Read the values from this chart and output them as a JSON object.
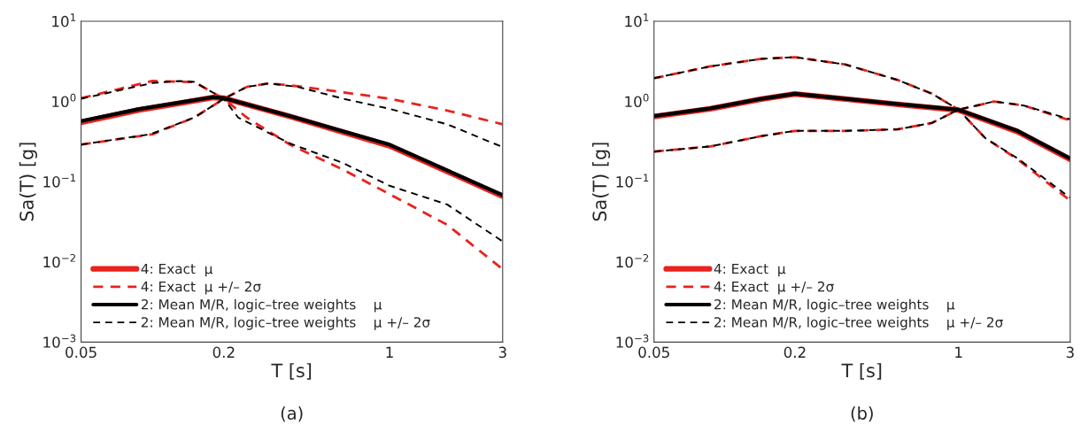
{
  "chart_data": [
    {
      "type": "line",
      "xlabel": "T [s]",
      "ylabel": "Sa(T) [g]",
      "annotations": [
        "(a)"
      ],
      "log": "xy",
      "grid": false,
      "legend": "bottom left",
      "xlim": [
        0.05,
        3
      ],
      "xticks": [
        0.05,
        0.2,
        1,
        3
      ],
      "ylim": [
        0.001,
        10
      ],
      "yticks": [
        {
          "value": 0.001,
          "label": "10$^{−3}$"
        },
        {
          "value": 0.01,
          "label": "10$^{−2}$"
        },
        {
          "value": 0.1,
          "label": "10$^{−1}$"
        },
        {
          "value": 1,
          "label": "10$^{0}$"
        },
        {
          "value": 10,
          "label": "10$^{1}$"
        }
      ],
      "series": [
        {
          "name": "4: Exact  μ",
          "color": "#e8221c",
          "line_style": "solid",
          "x": [
            0.05,
            0.087,
            0.144,
            0.18,
            0.2,
            0.38,
            1,
            3
          ],
          "values": [
            0.55,
            0.78,
            1.0,
            1.12,
            1.1,
            0.65,
            0.28,
            0.066
          ]
        },
        {
          "name": "4: Exact  μ +/– 2σ",
          "color": "#e8221c",
          "line_style": "dashed",
          "x": [
            0.05,
            0.1,
            0.15,
            0.2,
            0.25,
            0.38,
            0.64,
            1,
            1.75,
            3
          ],
          "values": [
            1.1,
            1.8,
            1.75,
            1.08,
            0.63,
            0.29,
            0.14,
            0.07,
            0.029,
            0.0081
          ]
        },
        {
          "color": "#e8221c",
          "line_style": "dashed",
          "x": [
            0.05,
            0.1,
            0.15,
            0.2,
            0.25,
            0.31,
            0.41,
            0.64,
            1,
            1.75,
            3
          ],
          "values": [
            0.29,
            0.39,
            0.63,
            1.08,
            1.52,
            1.68,
            1.55,
            1.3,
            1.08,
            0.77,
            0.52
          ]
        },
        {
          "name": "2: Mean M/R, logic–tree weights    μ",
          "color": "#000000",
          "line_style": "solid",
          "x": [
            0.05,
            0.087,
            0.144,
            0.18,
            0.2,
            0.38,
            1,
            3
          ],
          "values": [
            0.57,
            0.8,
            1.02,
            1.13,
            1.1,
            0.66,
            0.29,
            0.068
          ]
        },
        {
          "name": "2: Mean M/R, logic–tree weights    μ +/– 2σ",
          "color": "#000000",
          "line_style": "dashed",
          "x": [
            0.05,
            0.1,
            0.13,
            0.15,
            0.2,
            0.23,
            0.38,
            0.64,
            1,
            1.75,
            3
          ],
          "values": [
            1.08,
            1.7,
            1.8,
            1.75,
            1.08,
            0.63,
            0.3,
            0.17,
            0.089,
            0.052,
            0.018
          ]
        },
        {
          "color": "#000000",
          "line_style": "dashed",
          "x": [
            0.05,
            0.098,
            0.15,
            0.2,
            0.25,
            0.31,
            0.41,
            0.64,
            1,
            1.75,
            3
          ],
          "values": [
            0.29,
            0.39,
            0.63,
            1.08,
            1.52,
            1.68,
            1.52,
            1.08,
            0.81,
            0.52,
            0.27
          ]
        }
      ]
    },
    {
      "type": "line",
      "xlabel": "T [s]",
      "ylabel": "Sa(T) [g]",
      "annotations": [
        "(b)"
      ],
      "log": "xy",
      "grid": false,
      "legend": "bottom left",
      "xlim": [
        0.05,
        3
      ],
      "xticks": [
        0.05,
        0.2,
        1,
        3
      ],
      "ylim": [
        0.001,
        10
      ],
      "yticks": [
        {
          "value": 0.001,
          "label": "10$^{−3}$"
        },
        {
          "value": 0.01,
          "label": "10$^{−2}$"
        },
        {
          "value": 0.1,
          "label": "10$^{−1}$"
        },
        {
          "value": 1,
          "label": "10$^{0}$"
        },
        {
          "value": 10,
          "label": "10$^{1}$"
        }
      ],
      "series": [
        {
          "name": "4: Exact  μ",
          "color": "#e8221c",
          "line_style": "solid",
          "x": [
            0.05,
            0.087,
            0.144,
            0.2,
            0.33,
            0.55,
            1,
            1.79,
            3
          ],
          "values": [
            0.65,
            0.81,
            1.07,
            1.24,
            1.07,
            0.92,
            0.78,
            0.42,
            0.19
          ]
        },
        {
          "name": "4: Exact  μ +/– 2σ",
          "color": "#e8221c",
          "line_style": "dashed",
          "x": [
            0.05,
            0.087,
            0.144,
            0.2,
            0.33,
            0.55,
            0.77,
            1,
            1.3,
            1.79,
            3
          ],
          "values": [
            1.95,
            2.74,
            3.4,
            3.57,
            2.88,
            1.85,
            1.25,
            0.79,
            0.35,
            0.19,
            0.058
          ]
        },
        {
          "color": "#e8221c",
          "line_style": "dashed",
          "x": [
            0.05,
            0.087,
            0.144,
            0.2,
            0.33,
            0.55,
            0.77,
            1,
            1.42,
            1.9,
            3
          ],
          "values": [
            0.237,
            0.275,
            0.37,
            0.43,
            0.43,
            0.45,
            0.54,
            0.79,
            1.0,
            0.89,
            0.58
          ]
        },
        {
          "name": "2: Mean M/R, logic–tree weights    μ",
          "color": "#000000",
          "line_style": "solid",
          "x": [
            0.05,
            0.087,
            0.144,
            0.2,
            0.33,
            0.55,
            1,
            1.79,
            3
          ],
          "values": [
            0.66,
            0.82,
            1.08,
            1.25,
            1.08,
            0.93,
            0.79,
            0.43,
            0.195
          ]
        },
        {
          "name": "2: Mean M/R, logic–tree weights    μ +/– 2σ",
          "color": "#000000",
          "line_style": "dashed",
          "x": [
            0.05,
            0.087,
            0.144,
            0.2,
            0.33,
            0.55,
            0.77,
            1,
            1.3,
            1.79,
            3
          ],
          "values": [
            1.95,
            2.74,
            3.4,
            3.57,
            2.88,
            1.85,
            1.25,
            0.79,
            0.35,
            0.195,
            0.063
          ]
        },
        {
          "color": "#000000",
          "line_style": "dashed",
          "x": [
            0.05,
            0.087,
            0.144,
            0.2,
            0.33,
            0.55,
            0.77,
            1,
            1.42,
            1.9,
            3
          ],
          "values": [
            0.237,
            0.275,
            0.37,
            0.43,
            0.43,
            0.45,
            0.54,
            0.79,
            1.0,
            0.89,
            0.6
          ]
        }
      ]
    }
  ]
}
